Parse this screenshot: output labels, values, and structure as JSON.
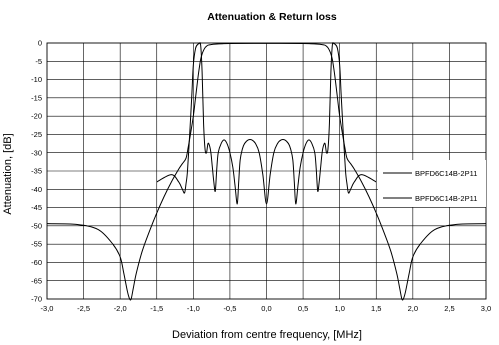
{
  "chart_data": {
    "type": "line",
    "title": "Attenuation & Return loss",
    "xlabel": "Deviation from centre frequency, [MHz]",
    "ylabel": "Attenuation, [dB]",
    "xlim": [
      -3.0,
      3.0
    ],
    "ylim": [
      -70,
      0
    ],
    "xticks": [
      "-3,0",
      "-2,5",
      "-2,0",
      "-1,5",
      "-1,0",
      "-0,5",
      "0,0",
      "0,5",
      "1,0",
      "1,5",
      "2,0",
      "2,5",
      "3,0"
    ],
    "yticks": [
      "0",
      "-5",
      "-10",
      "-15",
      "-20",
      "-25",
      "-30",
      "-35",
      "-40",
      "-45",
      "-50",
      "-55",
      "-60",
      "-65",
      "-70"
    ],
    "grid": true,
    "legend_position": "right",
    "series": [
      {
        "name": "BPFD6C14B-2P11",
        "kind": "attenuation",
        "x": [
          -3.0,
          -2.6,
          -2.3,
          -2.1,
          -2.0,
          -1.95,
          -1.9,
          -1.87,
          -1.85,
          -1.82,
          -1.78,
          -1.7,
          -1.6,
          -1.5,
          -1.4,
          -1.3,
          -1.2,
          -1.15,
          -1.1,
          -1.07,
          -1.04,
          -1.0,
          -0.97,
          -0.94,
          -0.92,
          -0.9,
          -0.88,
          -0.86,
          -0.84,
          -0.82,
          -0.8,
          -0.75,
          -0.7,
          -0.6,
          -0.5,
          0.0,
          0.5,
          0.6,
          0.7,
          0.75,
          0.8,
          0.82,
          0.84,
          0.86,
          0.88,
          0.9,
          0.92,
          0.94,
          0.97,
          1.0,
          1.04,
          1.07,
          1.1,
          1.15,
          1.2,
          1.3,
          1.4,
          1.5,
          1.6,
          1.7,
          1.78,
          1.82,
          1.85,
          1.87,
          1.9,
          1.95,
          2.0,
          2.1,
          2.3,
          2.6,
          3.0
        ],
        "y": [
          -49.4,
          -49.6,
          -51,
          -55,
          -58.5,
          -63,
          -68,
          -70,
          -70,
          -67,
          -63,
          -57,
          -51.5,
          -46.5,
          -42,
          -38,
          -34.5,
          -33,
          -31.5,
          -28.5,
          -25,
          -20,
          -15,
          -10,
          -7,
          -4.5,
          -3,
          -2,
          -1.3,
          -0.9,
          -0.6,
          -0.4,
          -0.3,
          -0.2,
          -0.15,
          -0.1,
          -0.15,
          -0.2,
          -0.3,
          -0.4,
          -0.6,
          -0.9,
          -1.3,
          -2,
          -3,
          -4.5,
          -7,
          -10,
          -15,
          -20,
          -25,
          -28.5,
          -31.5,
          -33,
          -34.5,
          -38,
          -42,
          -46.5,
          -51.5,
          -57,
          -63,
          -67,
          -70,
          -70,
          -68,
          -63,
          -58.5,
          -55,
          -51,
          -49.6,
          -49.4
        ]
      },
      {
        "name": "BPFD6C14B-2P11",
        "kind": "return_loss",
        "x": [
          -1.5,
          -1.3,
          -1.2,
          -1.15,
          -1.12,
          -1.1,
          -1.08,
          -1.05,
          -1.02,
          -1.0,
          -0.97,
          -0.94,
          -0.92,
          -0.9,
          -0.88,
          -0.86,
          -0.84,
          -0.82,
          -0.8,
          -0.78,
          -0.76,
          -0.74,
          -0.72,
          -0.7,
          -0.68,
          -0.66,
          -0.62,
          -0.58,
          -0.54,
          -0.5,
          -0.46,
          -0.43,
          -0.4,
          -0.38,
          -0.36,
          -0.33,
          -0.3,
          -0.25,
          -0.2,
          -0.15,
          -0.1,
          -0.05,
          0.0,
          0.05,
          0.1,
          0.15,
          0.2,
          0.25,
          0.3,
          0.33,
          0.36,
          0.38,
          0.4,
          0.43,
          0.46,
          0.5,
          0.54,
          0.58,
          0.62,
          0.66,
          0.68,
          0.7,
          0.72,
          0.74,
          0.76,
          0.78,
          0.8,
          0.82,
          0.84,
          0.86,
          0.88,
          0.9,
          0.92,
          0.94,
          0.97,
          1.0,
          1.02,
          1.05,
          1.08,
          1.1,
          1.12,
          1.15,
          1.2,
          1.3,
          1.5
        ],
        "y": [
          -38,
          -36,
          -38,
          -40,
          -41,
          -38.5,
          -35,
          -25,
          -14,
          -6,
          -1.5,
          -0.4,
          -0.2,
          -0.6,
          -8,
          -22,
          -29,
          -30,
          -27.5,
          -28,
          -30,
          -34,
          -38,
          -40.5,
          -34.5,
          -30,
          -27.5,
          -26.5,
          -27.5,
          -30,
          -34,
          -39,
          -44,
          -38,
          -32,
          -29,
          -27.5,
          -26.5,
          -26.5,
          -27.5,
          -30,
          -36,
          -44,
          -36,
          -30,
          -27.5,
          -26.5,
          -26.5,
          -27.5,
          -29,
          -32,
          -38,
          -44,
          -39,
          -34,
          -30,
          -27.5,
          -26.5,
          -27.5,
          -30,
          -34.5,
          -40.5,
          -38,
          -34,
          -30,
          -28,
          -27.5,
          -30,
          -29,
          -22,
          -8,
          -0.6,
          -0.2,
          -0.4,
          -1.5,
          -6,
          -14,
          -25,
          -35,
          -38.5,
          -41,
          -40,
          -38,
          -36,
          -38
        ]
      }
    ]
  }
}
